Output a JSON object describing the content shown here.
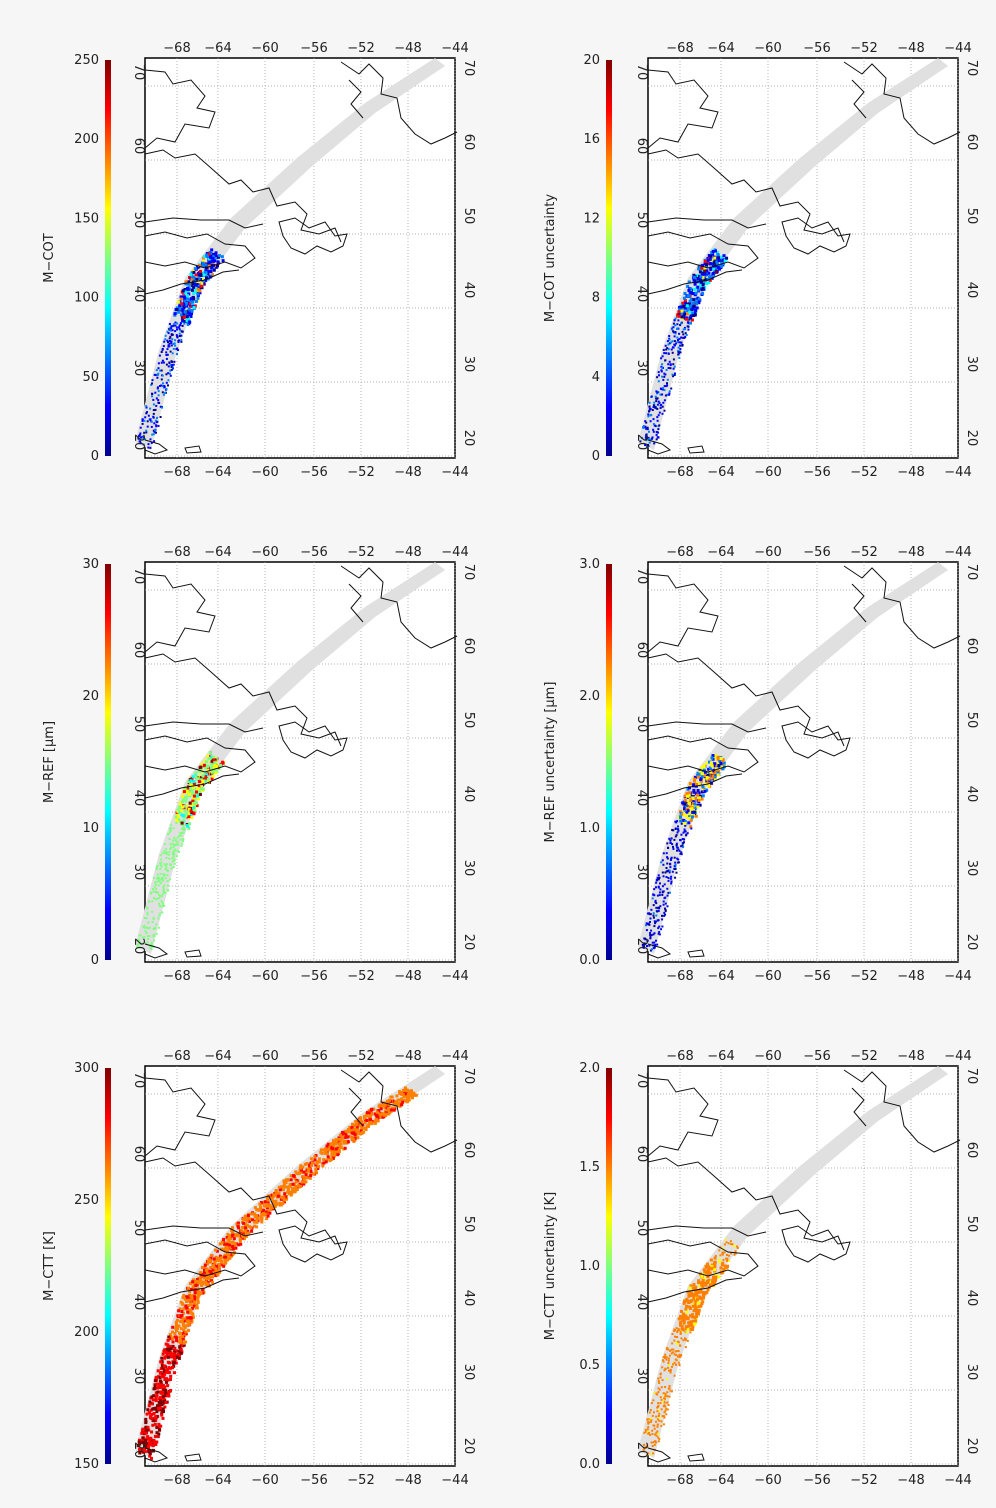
{
  "map_grid": {
    "lon_ticks": [
      "−68",
      "−64",
      "−60",
      "−56",
      "−52",
      "−48",
      "−44"
    ],
    "lat_ticks": [
      "20",
      "30",
      "40",
      "50",
      "60",
      "70"
    ]
  },
  "panels": [
    {
      "id": "m-cot",
      "cbar_title": "M−COT",
      "cbar_ticks": [
        "0",
        "50",
        "100",
        "150",
        "200",
        "250"
      ],
      "pattern": "cot"
    },
    {
      "id": "m-cot-unc",
      "cbar_title": "M−COT uncertainty",
      "cbar_ticks": [
        "0",
        "4",
        "8",
        "12",
        "16",
        "20"
      ],
      "pattern": "cot"
    },
    {
      "id": "m-ref",
      "cbar_title": "M−REF [μm]",
      "cbar_ticks": [
        "0",
        "10",
        "20",
        "30"
      ],
      "pattern": "ref"
    },
    {
      "id": "m-ref-unc",
      "cbar_title": "M−REF uncertainty [μm]",
      "cbar_ticks": [
        "0.0",
        "1.0",
        "2.0",
        "3.0"
      ],
      "pattern": "ref-unc"
    },
    {
      "id": "m-ctt",
      "cbar_title": "M−CTT [K]",
      "cbar_ticks": [
        "150",
        "200",
        "250",
        "300"
      ],
      "pattern": "ctt"
    },
    {
      "id": "m-ctt-unc",
      "cbar_title": "M−CTT uncertainty [K]",
      "cbar_ticks": [
        "0.0",
        "0.5",
        "1.0",
        "1.5",
        "2.0"
      ],
      "pattern": "ctt-unc"
    }
  ]
}
